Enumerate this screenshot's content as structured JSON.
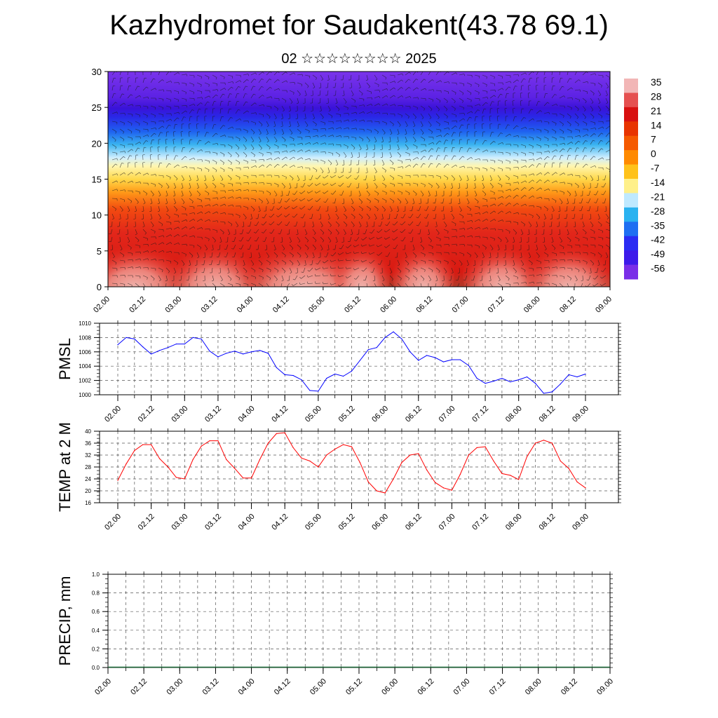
{
  "header": {
    "title": "Kazhydromet for Saudakent(43.78 69.1)",
    "subtitle": "02 ☆☆☆☆☆☆☆☆ 2025"
  },
  "chart_data": [
    {
      "type": "heatmap",
      "ylim": [
        0,
        30
      ],
      "yticks": [
        0,
        5,
        10,
        15,
        20,
        25,
        30
      ],
      "xticks": [
        "02.00",
        "02.12",
        "03.00",
        "03.12",
        "04.00",
        "04.12",
        "05.00",
        "05.12",
        "06.00",
        "06.12",
        "07.00",
        "07.12",
        "08.00",
        "08.12",
        "09.00"
      ],
      "colorbar": {
        "labels": [
          "35",
          "28",
          "21",
          "14",
          "7",
          "0",
          "-7",
          "-14",
          "-21",
          "-28",
          "-35",
          "-42",
          "-49",
          "-56"
        ],
        "colors": [
          "#f2b6b6",
          "#e55050",
          "#d81010",
          "#e83400",
          "#f55a00",
          "#ff8a00",
          "#ffc21a",
          "#fff08a",
          "#bfe9ff",
          "#2ab2f0",
          "#1f6ff2",
          "#2b2cf3",
          "#3d1aea",
          "#7a2ee8"
        ]
      },
      "grid": false
    },
    {
      "type": "line",
      "ylabel": "PMSL",
      "ylim": [
        1000,
        1010
      ],
      "yticks": [
        1000,
        1002,
        1004,
        1006,
        1008,
        1010
      ],
      "xticks": [
        "02.00",
        "02.12",
        "03.00",
        "03.12",
        "04.00",
        "04.12",
        "05.00",
        "05.12",
        "06.00",
        "06.12",
        "07.00",
        "07.12",
        "08.00",
        "08.12",
        "09.00"
      ],
      "x": [
        0,
        3,
        6,
        9,
        12,
        15,
        18,
        21,
        24,
        27,
        30,
        33,
        36,
        39,
        42,
        45,
        48,
        51,
        54,
        57,
        60,
        63,
        66,
        69,
        72,
        75,
        78,
        81,
        84,
        87,
        90,
        93,
        96,
        99,
        102,
        105,
        108,
        111,
        114,
        117,
        120,
        123,
        126,
        129,
        132,
        135,
        138,
        141,
        144,
        147,
        150,
        153,
        156,
        159,
        162,
        165,
        168
      ],
      "values": [
        1007.0,
        1008.0,
        1007.8,
        1006.7,
        1005.7,
        1006.2,
        1006.6,
        1007.1,
        1007.1,
        1008.0,
        1007.8,
        1006.1,
        1005.3,
        1005.8,
        1006.1,
        1005.7,
        1006.0,
        1006.2,
        1005.8,
        1003.8,
        1002.8,
        1002.7,
        1002.1,
        1000.6,
        1000.5,
        1002.3,
        1002.9,
        1002.6,
        1003.3,
        1004.8,
        1006.3,
        1006.6,
        1008.0,
        1008.8,
        1007.8,
        1006.0,
        1004.8,
        1005.5,
        1005.2,
        1004.6,
        1004.9,
        1004.9,
        1004.1,
        1002.3,
        1001.6,
        1001.9,
        1002.3,
        1001.8,
        1002.1,
        1002.5,
        1001.6,
        1000.2,
        1000.4,
        1001.5,
        1002.8,
        1002.5,
        1002.9
      ],
      "series_color": "#0000ff",
      "grid": true
    },
    {
      "type": "line",
      "ylabel": "TEMP at 2 M",
      "ylim": [
        16,
        40
      ],
      "yticks": [
        16,
        20,
        24,
        28,
        32,
        36,
        40
      ],
      "xticks": [
        "02.00",
        "02.12",
        "03.00",
        "03.12",
        "04.00",
        "04.12",
        "05.00",
        "05.12",
        "06.00",
        "06.12",
        "07.00",
        "07.12",
        "08.00",
        "08.12",
        "09.00"
      ],
      "x": [
        0,
        3,
        6,
        9,
        12,
        15,
        18,
        21,
        24,
        27,
        30,
        33,
        36,
        39,
        42,
        45,
        48,
        51,
        54,
        57,
        60,
        63,
        66,
        69,
        72,
        75,
        78,
        81,
        84,
        87,
        90,
        93,
        96,
        99,
        102,
        105,
        108,
        111,
        114,
        117,
        120,
        123,
        126,
        129,
        132,
        135,
        138,
        141,
        144,
        147,
        150,
        153,
        156,
        159,
        162,
        165,
        168
      ],
      "values": [
        23.5,
        29.0,
        33.5,
        35.5,
        35.5,
        30.8,
        28.0,
        24.5,
        24.0,
        30.5,
        35.0,
        36.8,
        36.8,
        30.5,
        27.5,
        24.3,
        24.3,
        30.5,
        36.0,
        39.2,
        39.5,
        34.5,
        31.0,
        30.0,
        28.0,
        32.0,
        34.0,
        35.5,
        34.8,
        29.5,
        23.0,
        20.0,
        19.3,
        24.0,
        29.5,
        32.0,
        32.5,
        27.0,
        22.8,
        21.0,
        20.2,
        25.5,
        32.0,
        34.5,
        34.8,
        30.0,
        25.8,
        25.2,
        23.8,
        31.5,
        36.0,
        37.0,
        36.0,
        30.0,
        27.5,
        23.0,
        21.0
      ],
      "series_color": "#ff0000",
      "grid": true
    },
    {
      "type": "bar",
      "ylabel": "PRECIP, mm",
      "ylim": [
        0.0,
        1.0
      ],
      "yticks": [
        "0.0",
        "0.2",
        "0.4",
        "0.6",
        "0.8",
        "1.0"
      ],
      "xticks": [
        "02.00",
        "02.12",
        "03.00",
        "03.12",
        "04.00",
        "04.12",
        "05.00",
        "05.12",
        "06.00",
        "06.12",
        "07.00",
        "07.12",
        "08.00",
        "08.12",
        "09.00"
      ],
      "values": [
        0,
        0,
        0,
        0,
        0,
        0,
        0,
        0,
        0,
        0,
        0,
        0,
        0,
        0,
        0,
        0,
        0,
        0,
        0,
        0,
        0,
        0,
        0,
        0,
        0,
        0,
        0,
        0,
        0,
        0,
        0,
        0,
        0,
        0,
        0,
        0,
        0,
        0,
        0,
        0,
        0,
        0,
        0,
        0,
        0,
        0,
        0,
        0,
        0,
        0,
        0,
        0,
        0,
        0,
        0,
        0,
        0
      ],
      "grid": true
    }
  ]
}
